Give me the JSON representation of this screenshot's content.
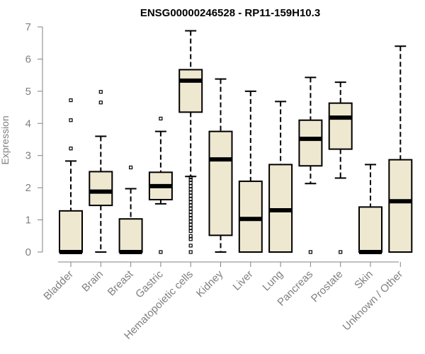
{
  "chart_data": {
    "type": "boxplot",
    "title": "ENSG00000246528 - RP11-159H10.3",
    "xlabel": "",
    "ylabel": "Expression",
    "ylim": [
      0,
      7
    ],
    "yticks": [
      0,
      1,
      2,
      3,
      4,
      5,
      6,
      7
    ],
    "grid": false,
    "colors": {
      "box_fill": "#efe8d0",
      "line": "#000000",
      "axis": "#808080"
    },
    "categories": [
      "Bladder",
      "Brain",
      "Breast",
      "Gastric",
      "Hematopoietic cells",
      "Kidney",
      "Liver",
      "Lung",
      "Pancreas",
      "Prostate",
      "Skin",
      "Unknown / Other"
    ],
    "boxes": [
      {
        "min": 0,
        "q1": 0,
        "median": 0,
        "q3": 1.28,
        "max": 2.83,
        "outliers": [
          3.22,
          4.1,
          4.72
        ]
      },
      {
        "min": 0,
        "q1": 1.45,
        "median": 1.88,
        "q3": 2.5,
        "max": 3.6,
        "outliers": [
          4.65,
          4.98
        ]
      },
      {
        "min": 0,
        "q1": 0,
        "median": 0,
        "q3": 1.03,
        "max": 1.97,
        "outliers": [
          2.63
        ]
      },
      {
        "min": 1.5,
        "q1": 1.63,
        "median": 2.05,
        "q3": 2.48,
        "max": 3.75,
        "outliers": [
          0,
          4.15
        ]
      },
      {
        "min": 2.35,
        "q1": 4.35,
        "median": 5.33,
        "q3": 5.67,
        "max": 6.88,
        "outliers": [
          0,
          0.2,
          0.4,
          0.5,
          0.65,
          0.75,
          0.85,
          0.95,
          1.05,
          1.15,
          1.25,
          1.35,
          1.45,
          1.55,
          1.65,
          1.75,
          1.85,
          1.95,
          2.05,
          2.15,
          2.25,
          2.32
        ]
      },
      {
        "min": 0,
        "q1": 0.52,
        "median": 2.88,
        "q3": 3.75,
        "max": 5.38,
        "outliers": []
      },
      {
        "min": 0,
        "q1": 0,
        "median": 1.03,
        "q3": 2.2,
        "max": 5.0,
        "outliers": []
      },
      {
        "min": 0,
        "q1": 0,
        "median": 1.3,
        "q3": 2.72,
        "max": 4.68,
        "outliers": []
      },
      {
        "min": 2.13,
        "q1": 2.68,
        "median": 3.52,
        "q3": 4.1,
        "max": 5.43,
        "outliers": [
          0
        ]
      },
      {
        "min": 2.3,
        "q1": 3.2,
        "median": 4.18,
        "q3": 4.63,
        "max": 5.28,
        "outliers": [
          0
        ]
      },
      {
        "min": 0,
        "q1": 0,
        "median": 0,
        "q3": 1.4,
        "max": 2.72,
        "outliers": []
      },
      {
        "min": 0,
        "q1": 0,
        "median": 1.58,
        "q3": 2.87,
        "max": 6.4,
        "outliers": []
      }
    ]
  }
}
